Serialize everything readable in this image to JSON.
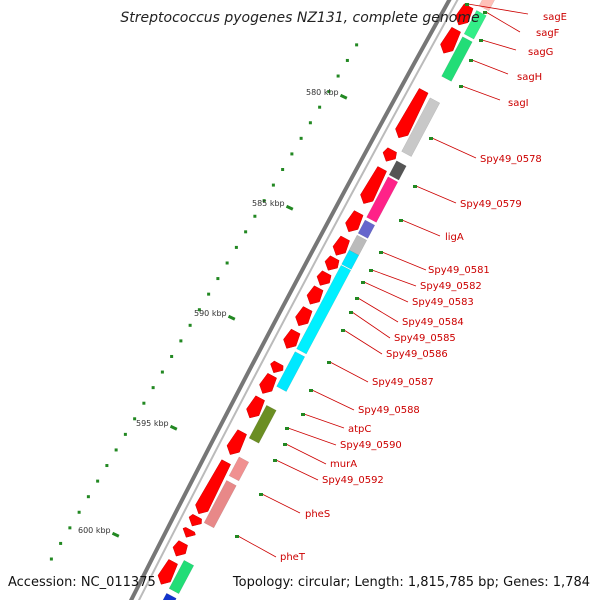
{
  "title": "Streptococcus pyogenes NZ131, complete genome",
  "footer": {
    "accession": "Accession: NC_011375",
    "info": "Topology: circular; Length: 1,815,785 bp; Genes: 1,784"
  },
  "kbp_labels": [
    "580 kbp",
    "585 kbp",
    "590 kbp",
    "595 kbp",
    "600 kbp"
  ],
  "gene_labels": [
    "sagE",
    "sagF",
    "sagG",
    "sagH",
    "sagI",
    "Spy49_0578",
    "Spy49_0579",
    "ligA",
    "Spy49_0581",
    "Spy49_0582",
    "Spy49_0583",
    "Spy49_0584",
    "Spy49_0585",
    "Spy49_0586",
    "Spy49_0587",
    "Spy49_0588",
    "atpC",
    "Spy49_0590",
    "murA",
    "Spy49_0592",
    "pheS",
    "pheT"
  ],
  "colors": {
    "cds": "#ff0000",
    "backbone": "#888888",
    "label": "#cc0000",
    "tick": "#228822"
  }
}
